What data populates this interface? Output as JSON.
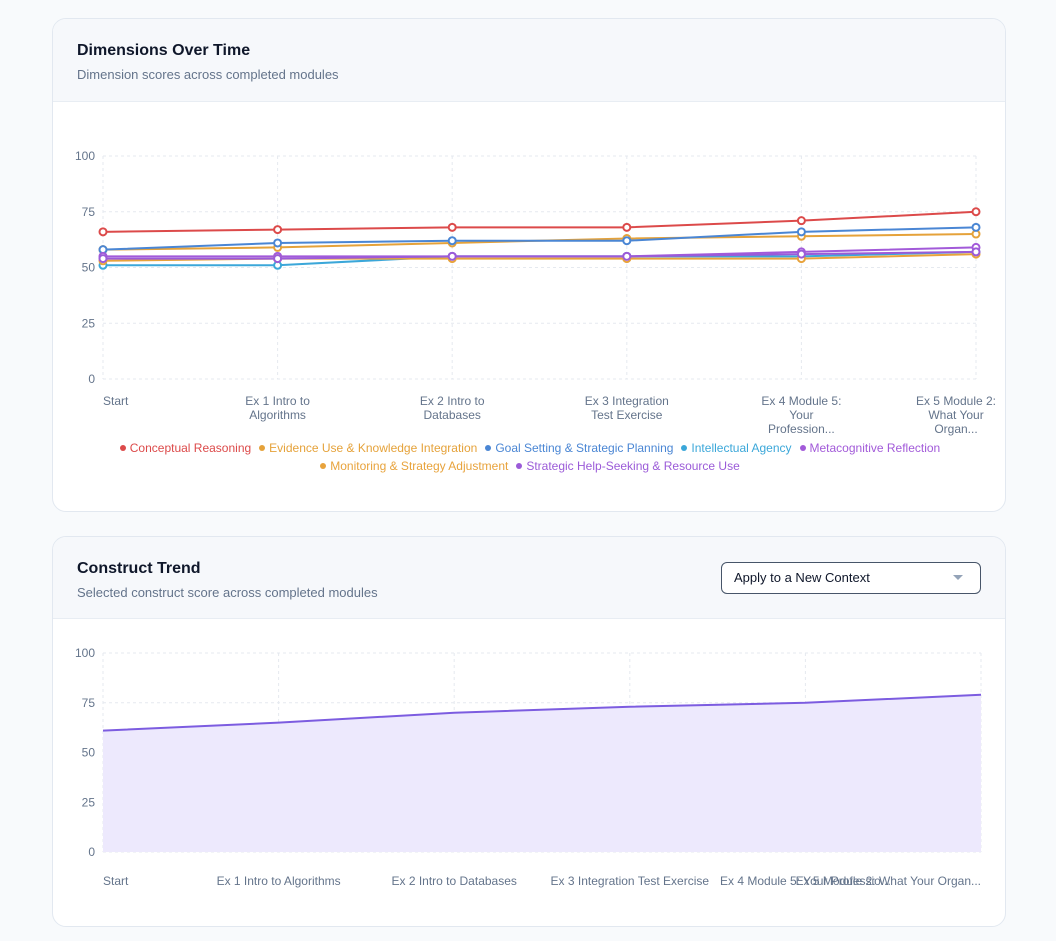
{
  "dimensions_card": {
    "title": "Dimensions Over Time",
    "subtitle": "Dimension scores across completed modules"
  },
  "construct_card": {
    "title": "Construct Trend",
    "subtitle": "Selected construct score across completed modules",
    "select": {
      "value": "Apply to a New Context"
    }
  },
  "chart_data": [
    {
      "type": "line",
      "categories": [
        [
          "Start"
        ],
        [
          "Ex 1 Intro to",
          "Algorithms"
        ],
        [
          "Ex 2 Intro to",
          "Databases"
        ],
        [
          "Ex 3 Integration",
          "Test Exercise"
        ],
        [
          "Ex 4 Module 5:",
          "Your",
          "Profession..."
        ],
        [
          "Ex 5 Module 2:",
          "What Your",
          "Organ..."
        ]
      ],
      "yticks": [
        "0",
        "25",
        "50",
        "75",
        "100"
      ],
      "ylim": [
        0,
        100
      ],
      "grid": true,
      "legend_position": "bottom",
      "series": [
        {
          "name": "Conceptual Reasoning",
          "color": "#dc4a4a",
          "values": [
            66,
            67,
            68,
            68,
            71,
            75
          ]
        },
        {
          "name": "Evidence Use & Knowledge Integration",
          "color": "#e5a23a",
          "values": [
            58,
            59,
            61,
            63,
            64,
            65
          ]
        },
        {
          "name": "Goal Setting & Strategic Planning",
          "color": "#4a86d4",
          "values": [
            58,
            61,
            62,
            62,
            66,
            68
          ]
        },
        {
          "name": "Intellectual Agency",
          "color": "#3ba7d9",
          "values": [
            51,
            51,
            55,
            55,
            55,
            57
          ]
        },
        {
          "name": "Metacognitive Reflection",
          "color": "#a25ad9",
          "values": [
            55,
            55,
            55,
            55,
            57,
            59
          ]
        },
        {
          "name": "Monitoring & Strategy Adjustment",
          "color": "#e8a33c",
          "values": [
            53,
            54,
            54,
            54,
            54,
            56
          ]
        },
        {
          "name": "Strategic Help-Seeking & Resource Use",
          "color": "#9b5bd8",
          "values": [
            54,
            54,
            55,
            55,
            56,
            57
          ]
        }
      ],
      "legend_rows": [
        [
          "Conceptual Reasoning",
          "Evidence Use & Knowledge Integration",
          "Goal Setting & Strategic Planning",
          "Intellectual Agency",
          "Metacognitive Reflection"
        ],
        [
          "Monitoring & Strategy Adjustment",
          "Strategic Help-Seeking & Resource Use"
        ]
      ]
    },
    {
      "type": "area",
      "categories": [
        "Start",
        "Ex 1 Intro to Algorithms",
        "Ex 2 Intro to Databases",
        "Ex 3 Integration Test Exercise",
        "Ex 4 Module 5: Your Professio...",
        "Ex 5 Module 2: What Your Organ..."
      ],
      "yticks": [
        "0",
        "25",
        "50",
        "75",
        "100"
      ],
      "ylim": [
        0,
        100
      ],
      "grid": true,
      "color": "#7c5ce0",
      "fill": "#ede9fd",
      "values": [
        61,
        65,
        70,
        73,
        75,
        79
      ]
    }
  ]
}
